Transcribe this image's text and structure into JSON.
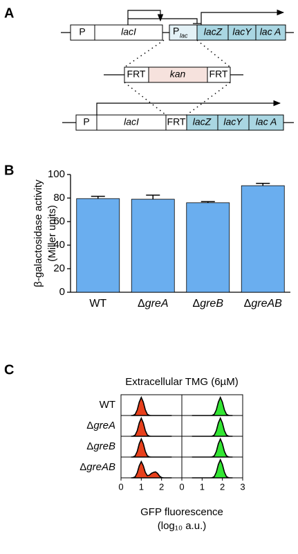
{
  "panel_labels": [
    "A",
    "B",
    "C"
  ],
  "diagram": {
    "top": [
      "P",
      "lacI",
      "P",
      "lac",
      "lacZ",
      "lacY",
      "lac A"
    ],
    "middle": [
      "FRT",
      "kan",
      "FRT"
    ],
    "bottom": [
      "P",
      "lacI",
      "FRT",
      "lacZ",
      "lacY",
      "lac A"
    ]
  },
  "chart_data": [
    {
      "type": "bar",
      "ylabel": [
        "β-galactosidase activity",
        "(Miller units)"
      ],
      "categories": [
        "WT",
        "ΔgreA",
        "ΔgreB",
        "ΔgreAB"
      ],
      "values": [
        79.5,
        79,
        76,
        90.5
      ],
      "errors": [
        2,
        3.5,
        1,
        2
      ],
      "color": "#6aaeef",
      "ylim": [
        0,
        100
      ],
      "yticks": [
        0,
        20,
        40,
        60,
        80,
        100
      ]
    },
    {
      "type": "area",
      "title": "Extracellular TMG (6µM)",
      "xlabel": [
        "GFP fluorescence",
        "(log₁₀ a.u.)"
      ],
      "categories": [
        "WT",
        "ΔgreA",
        "ΔgreB",
        "ΔgreAB"
      ],
      "x": [
        0.5,
        0.6,
        0.7,
        0.8,
        0.9,
        1.0,
        1.1,
        1.2,
        1.3,
        1.4,
        1.5,
        1.6,
        1.7,
        1.8,
        1.9,
        2.0,
        2.1,
        2.2,
        2.3,
        2.4,
        2.5
      ],
      "xlim": [
        0,
        3
      ],
      "ylim": [
        0,
        1.15
      ],
      "columns": [
        {
          "color": "#e8401c",
          "xticks": [
            0,
            1,
            2
          ],
          "series": [
            {
              "values": [
                0,
                0.01,
                0.07,
                0.31,
                0.74,
                1,
                0.74,
                0.31,
                0.07,
                0.01,
                0,
                0,
                0,
                0,
                0,
                0,
                0,
                0,
                0,
                0,
                0
              ]
            },
            {
              "values": [
                0,
                0.01,
                0.07,
                0.31,
                0.74,
                1,
                0.74,
                0.31,
                0.07,
                0.01,
                0,
                0,
                0,
                0,
                0,
                0,
                0,
                0,
                0,
                0,
                0
              ]
            },
            {
              "values": [
                0,
                0.01,
                0.07,
                0.31,
                0.74,
                1,
                0.74,
                0.31,
                0.07,
                0.01,
                0,
                0,
                0,
                0,
                0,
                0,
                0,
                0,
                0,
                0,
                0
              ]
            },
            {
              "values": [
                0,
                0.01,
                0.06,
                0.28,
                0.67,
                0.9,
                0.67,
                0.3,
                0.12,
                0.15,
                0.25,
                0.3,
                0.33,
                0.25,
                0.1,
                0.02,
                0,
                0,
                0,
                0,
                0
              ]
            }
          ]
        },
        {
          "color": "#33e633",
          "xticks": [
            0,
            1,
            2,
            3
          ],
          "series": [
            {
              "values": [
                0,
                0,
                0,
                0,
                0,
                0,
                0,
                0,
                0,
                0,
                0.01,
                0.07,
                0.31,
                0.74,
                1,
                0.74,
                0.31,
                0.07,
                0.01,
                0,
                0
              ]
            },
            {
              "values": [
                0,
                0,
                0,
                0,
                0,
                0,
                0,
                0,
                0,
                0,
                0.01,
                0.07,
                0.31,
                0.74,
                1,
                0.74,
                0.31,
                0.07,
                0.01,
                0,
                0
              ]
            },
            {
              "values": [
                0,
                0,
                0,
                0,
                0,
                0,
                0,
                0,
                0,
                0,
                0.01,
                0.07,
                0.31,
                0.74,
                1,
                0.74,
                0.31,
                0.07,
                0.01,
                0,
                0
              ]
            },
            {
              "values": [
                0,
                0,
                0,
                0,
                0,
                0,
                0,
                0,
                0,
                0,
                0.01,
                0.07,
                0.31,
                0.74,
                1,
                0.74,
                0.31,
                0.07,
                0.01,
                0,
                0
              ]
            }
          ]
        }
      ]
    }
  ]
}
